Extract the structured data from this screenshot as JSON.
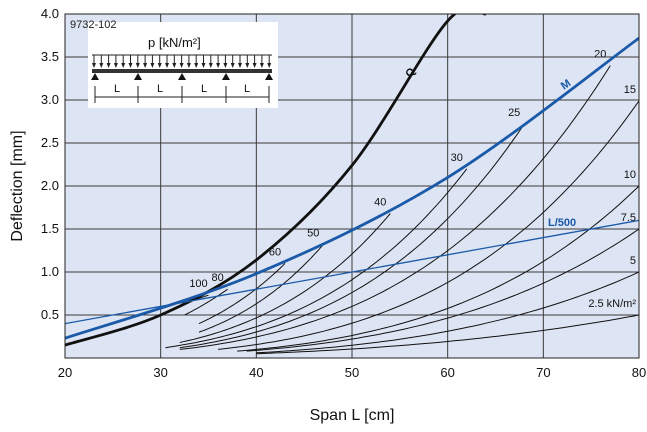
{
  "chart_data": {
    "type": "line",
    "doc_id": "9732-102",
    "xlabel": "Span L [cm]",
    "ylabel": "Deflection [mm]",
    "xlim": [
      20,
      80
    ],
    "ylim": [
      0,
      4.0
    ],
    "x_ticks": [
      20,
      30,
      40,
      50,
      60,
      70,
      80
    ],
    "y_ticks": [
      0.5,
      1.0,
      1.5,
      2.0,
      2.5,
      3.0,
      3.5,
      4.0
    ],
    "y_tick_labels": [
      "0.5",
      "1.0",
      "1.5",
      "2.0",
      "2.5",
      "3.0",
      "3.5",
      "4.0"
    ],
    "grid": true,
    "inset": {
      "load_label": "p [kN/m²]",
      "span_labels": [
        "L",
        "L",
        "L",
        "L"
      ]
    },
    "colors": {
      "background": "#dde4f3",
      "blue": "#1a5aa8",
      "black": "#111111"
    },
    "series": [
      {
        "name": "Q",
        "color": "#111111",
        "weight": "heavy",
        "x": [
          20,
          30,
          40,
          50,
          60,
          64
        ],
        "y": [
          0.15,
          0.5,
          1.14,
          2.24,
          3.92,
          4.0
        ]
      },
      {
        "name": "M",
        "color": "#1a5aa8",
        "weight": "heavy",
        "x": [
          20,
          40,
          60,
          80
        ],
        "y": [
          0.23,
          0.98,
          2.1,
          3.72
        ]
      },
      {
        "name": "L/500",
        "color": "#1a5aa8",
        "weight": "thin",
        "x": [
          20,
          80
        ],
        "y": [
          0.4,
          1.6
        ]
      }
    ],
    "load_curves": [
      {
        "label": "100",
        "x": [
          33.0,
          35.0
        ],
        "y": [
          0.66,
          0.73
        ]
      },
      {
        "label": "80",
        "x": [
          32.5,
          37.0
        ],
        "y": [
          0.5,
          0.8
        ]
      },
      {
        "label": "60",
        "x": [
          34.0,
          43.0
        ],
        "y": [
          0.4,
          1.1
        ]
      },
      {
        "label": "50",
        "x": [
          34.0,
          47.0
        ],
        "y": [
          0.3,
          1.32
        ]
      },
      {
        "label": "40",
        "x": [
          32.0,
          54.0
        ],
        "y": [
          0.18,
          1.68
        ]
      },
      {
        "label": "30",
        "x": [
          30.5,
          62.0
        ],
        "y": [
          0.12,
          2.2
        ]
      },
      {
        "label": "25",
        "x": [
          32.0,
          68.0
        ],
        "y": [
          0.12,
          2.72
        ]
      },
      {
        "label": "20",
        "x": [
          32.0,
          77.0
        ],
        "y": [
          0.1,
          3.4
        ]
      },
      {
        "label": "15",
        "x": [
          36.0,
          80.0
        ],
        "y": [
          0.1,
          2.99
        ]
      },
      {
        "label": "10",
        "x": [
          38.0,
          80.0
        ],
        "y": [
          0.08,
          2.0
        ]
      },
      {
        "label": "7.5",
        "x": [
          39.0,
          80.0
        ],
        "y": [
          0.08,
          1.5
        ]
      },
      {
        "label": "5",
        "x": [
          40.0,
          80.0
        ],
        "y": [
          0.06,
          1.0
        ]
      },
      {
        "label": "2.5 kN/m²",
        "x": [
          40.0,
          80.0
        ],
        "y": [
          0.05,
          0.5
        ]
      }
    ]
  }
}
